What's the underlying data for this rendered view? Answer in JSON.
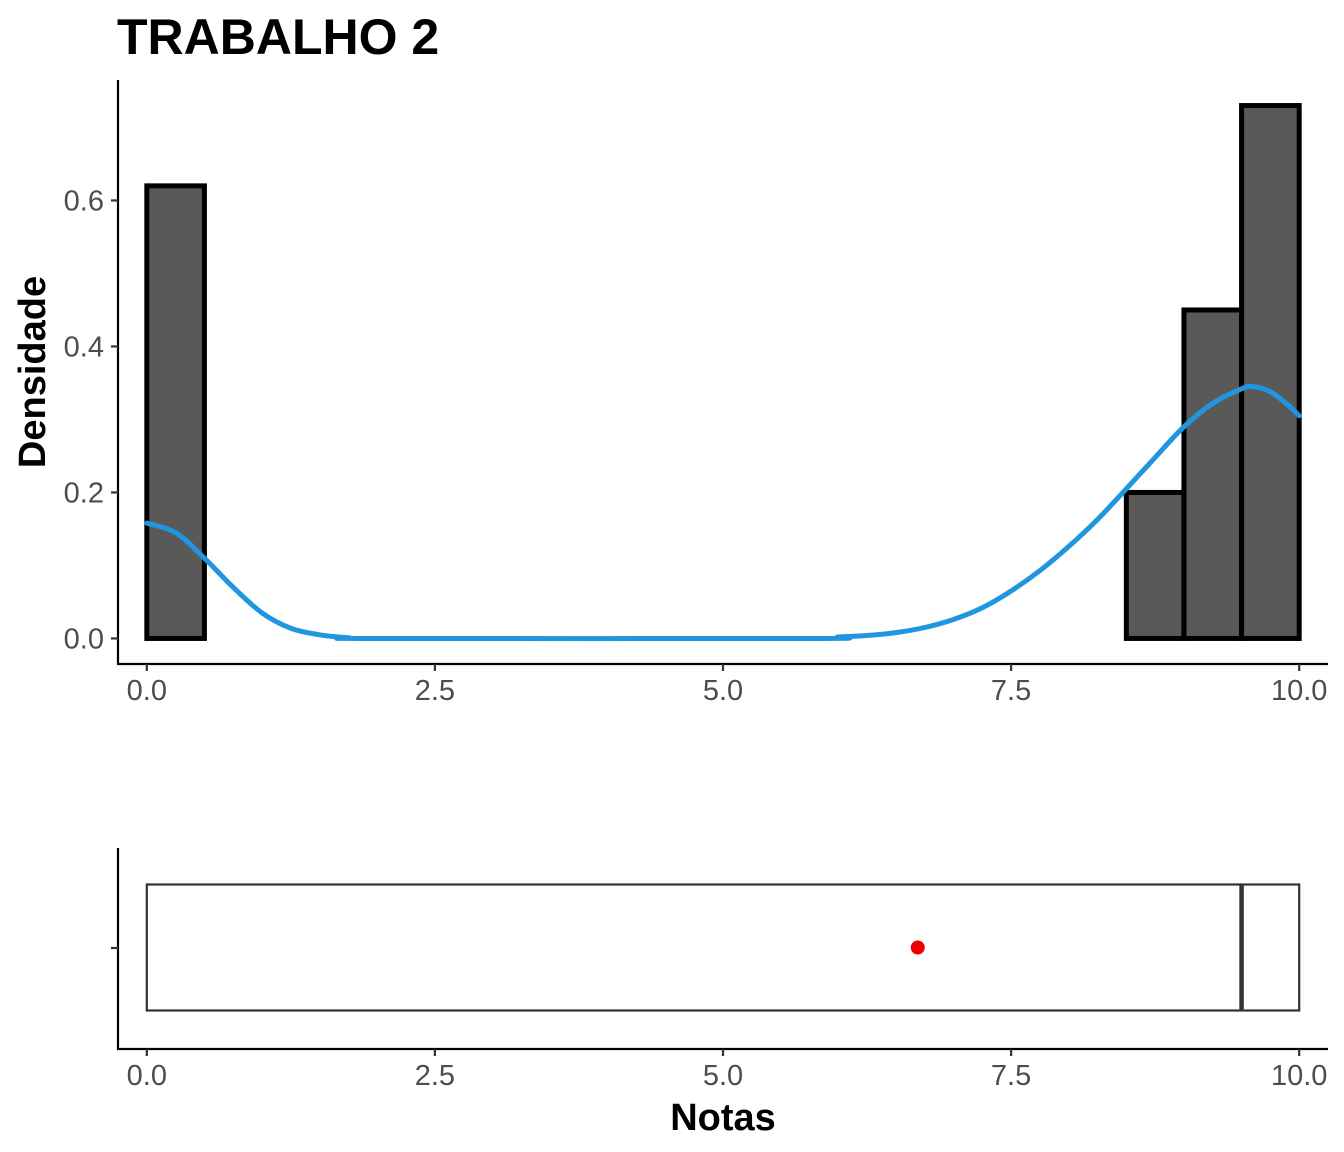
{
  "chart_data": [
    {
      "type": "histogram",
      "title": "TRABALHO 2",
      "xlabel": "",
      "ylabel": "Densidade",
      "xlim": [
        -0.25,
        10.25
      ],
      "ylim": [
        -0.035,
        0.765
      ],
      "x_ticks": [
        0.0,
        2.5,
        5.0,
        7.5,
        10.0
      ],
      "x_tick_labels": [
        "0.0",
        "2.5",
        "5.0",
        "7.5",
        "10.0"
      ],
      "y_ticks": [
        0.0,
        0.2,
        0.4,
        0.6
      ],
      "y_tick_labels": [
        "0.0",
        "0.2",
        "0.4",
        "0.6"
      ],
      "grid": false,
      "bin_width": 0.5,
      "bins": [
        {
          "x0": 0.0,
          "x1": 0.5,
          "density": 0.62
        },
        {
          "x0": 0.5,
          "x1": 1.0,
          "density": 0.0
        },
        {
          "x0": 1.0,
          "x1": 1.5,
          "density": 0.0
        },
        {
          "x0": 1.5,
          "x1": 2.0,
          "density": 0.0
        },
        {
          "x0": 2.0,
          "x1": 2.5,
          "density": 0.0
        },
        {
          "x0": 2.5,
          "x1": 3.0,
          "density": 0.0
        },
        {
          "x0": 3.0,
          "x1": 3.5,
          "density": 0.0
        },
        {
          "x0": 3.5,
          "x1": 4.0,
          "density": 0.0
        },
        {
          "x0": 4.0,
          "x1": 4.5,
          "density": 0.0
        },
        {
          "x0": 4.5,
          "x1": 5.0,
          "density": 0.0
        },
        {
          "x0": 5.0,
          "x1": 5.5,
          "density": 0.0
        },
        {
          "x0": 5.5,
          "x1": 6.0,
          "density": 0.0
        },
        {
          "x0": 6.0,
          "x1": 6.5,
          "density": 0.0
        },
        {
          "x0": 6.5,
          "x1": 7.0,
          "density": 0.0
        },
        {
          "x0": 7.0,
          "x1": 7.5,
          "density": 0.0
        },
        {
          "x0": 7.5,
          "x1": 8.0,
          "density": 0.0
        },
        {
          "x0": 8.0,
          "x1": 8.5,
          "density": 0.0
        },
        {
          "x0": 8.5,
          "x1": 9.0,
          "density": 0.2
        },
        {
          "x0": 9.0,
          "x1": 9.5,
          "density": 0.45
        },
        {
          "x0": 9.5,
          "x1": 10.0,
          "density": 0.73
        }
      ],
      "bar_fill": "#595959",
      "density_curve": {
        "color": "#2196e0",
        "points": [
          [
            0.0,
            0.158
          ],
          [
            0.25,
            0.145
          ],
          [
            0.5,
            0.11
          ],
          [
            0.75,
            0.07
          ],
          [
            1.0,
            0.035
          ],
          [
            1.25,
            0.014
          ],
          [
            1.5,
            0.005
          ],
          [
            1.75,
            0.001
          ],
          [
            2.0,
            0.0
          ],
          [
            5.75,
            0.0
          ],
          [
            6.0,
            0.002
          ],
          [
            6.25,
            0.004
          ],
          [
            6.5,
            0.008
          ],
          [
            6.75,
            0.015
          ],
          [
            7.0,
            0.026
          ],
          [
            7.25,
            0.042
          ],
          [
            7.5,
            0.065
          ],
          [
            7.75,
            0.093
          ],
          [
            8.0,
            0.126
          ],
          [
            8.25,
            0.163
          ],
          [
            8.5,
            0.205
          ],
          [
            8.75,
            0.248
          ],
          [
            9.0,
            0.29
          ],
          [
            9.25,
            0.322
          ],
          [
            9.5,
            0.342
          ],
          [
            9.6,
            0.345
          ],
          [
            9.75,
            0.338
          ],
          [
            9.9,
            0.32
          ],
          [
            10.0,
            0.305
          ]
        ]
      }
    },
    {
      "type": "boxplot",
      "xlabel": "Notas",
      "xlim": [
        -0.25,
        10.25
      ],
      "x_ticks": [
        0.0,
        2.5,
        5.0,
        7.5,
        10.0
      ],
      "x_tick_labels": [
        "0.0",
        "2.5",
        "5.0",
        "7.5",
        "10.0"
      ],
      "grid": false,
      "q1": 0.0,
      "median": 9.5,
      "q3": 10.0,
      "mean": 6.69,
      "mean_color": "#ee0000"
    }
  ]
}
